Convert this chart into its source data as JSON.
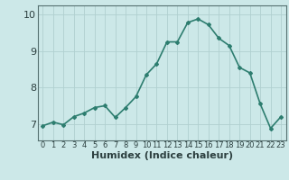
{
  "x": [
    0,
    1,
    2,
    3,
    4,
    5,
    6,
    7,
    8,
    9,
    10,
    11,
    12,
    13,
    14,
    15,
    16,
    17,
    18,
    19,
    20,
    21,
    22,
    23
  ],
  "y": [
    6.95,
    7.05,
    6.98,
    7.2,
    7.3,
    7.45,
    7.5,
    7.18,
    7.45,
    7.75,
    8.35,
    8.65,
    9.25,
    9.25,
    9.78,
    9.88,
    9.72,
    9.35,
    9.15,
    8.55,
    8.4,
    7.55,
    6.88,
    7.2
  ],
  "line_color": "#2d7d6f",
  "marker": "D",
  "markersize": 2.0,
  "bg_color": "#cce8e8",
  "grid_color": "#b0d0d0",
  "tick_color": "#2d4040",
  "xlabel": "Humidex (Indice chaleur)",
  "xlabel_fontsize": 8,
  "ylabel_ticks": [
    7,
    8,
    9,
    10
  ],
  "xlim": [
    -0.5,
    23.5
  ],
  "ylim": [
    6.55,
    10.25
  ],
  "ytick_fontsize": 8,
  "xtick_fontsize": 6,
  "linewidth": 1.2
}
